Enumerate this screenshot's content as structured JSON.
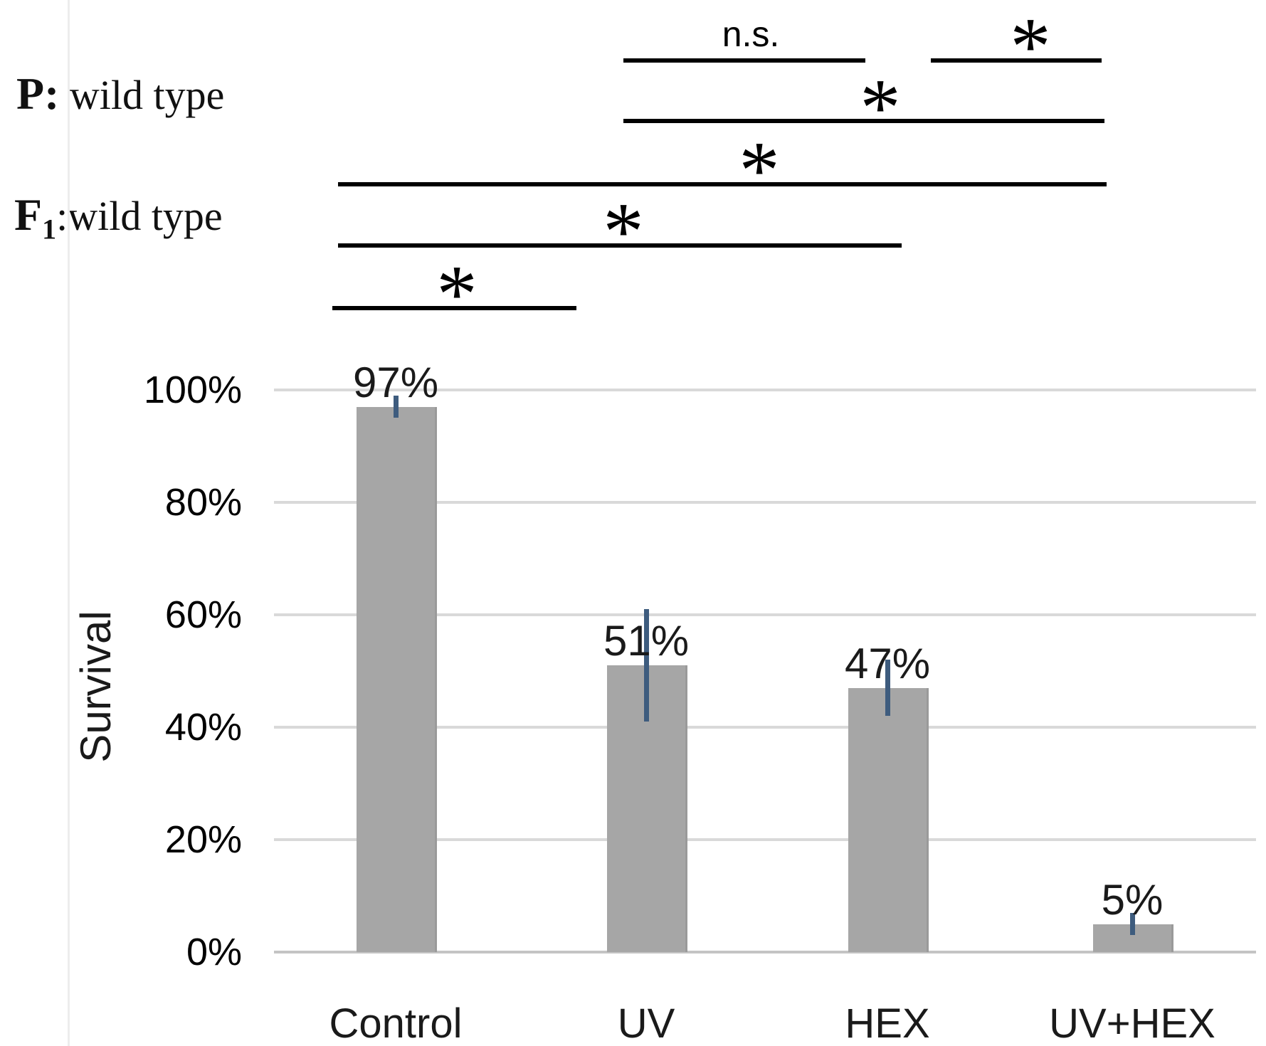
{
  "figure": {
    "background": "#ffffff",
    "generation_labels": {
      "p_row": {
        "bold": "P:",
        "rest": " wild type"
      },
      "f1_row": {
        "bold": "F",
        "sub": "1",
        "rest": ":wild type"
      }
    }
  },
  "chart_data": {
    "type": "bar",
    "title": "",
    "categories": [
      "Control",
      "UV",
      "HEX",
      "UV+HEX"
    ],
    "values": [
      97,
      51,
      47,
      5
    ],
    "data_labels": [
      "97%",
      "51%",
      "47%",
      "5%"
    ],
    "error_minus": [
      2,
      10,
      5,
      2
    ],
    "error_plus": [
      2,
      10,
      5,
      2
    ],
    "xlabel": "",
    "ylabel": "Survival",
    "ylim": [
      0,
      100
    ],
    "y_tick_labels": [
      "100%",
      "80%",
      "60%",
      "40%",
      "20%",
      "0%"
    ],
    "y_tick_values": [
      100,
      80,
      60,
      40,
      20,
      0
    ],
    "grid": true,
    "legend_position": "none",
    "colors": {
      "bar_fill": "#a6a6a6",
      "bar_edge": "#9a9a9a",
      "error_bar": "#3e5c7e",
      "gridline": "#d9d9d9",
      "axis_line": "#c4c4c4",
      "text": "#1a1a1a"
    }
  },
  "significance": {
    "brackets": [
      {
        "label": "n.s.",
        "from": "UV",
        "to": "HEX"
      },
      {
        "label": "*",
        "from": "HEX",
        "to": "UV+HEX"
      },
      {
        "label": "*",
        "from": "UV",
        "to": "UV+HEX"
      },
      {
        "label": "*",
        "from": "Control",
        "to": "UV+HEX"
      },
      {
        "label": "*",
        "from": "Control",
        "to": "HEX"
      },
      {
        "label": "*",
        "from": "Control",
        "to": "UV"
      }
    ]
  }
}
